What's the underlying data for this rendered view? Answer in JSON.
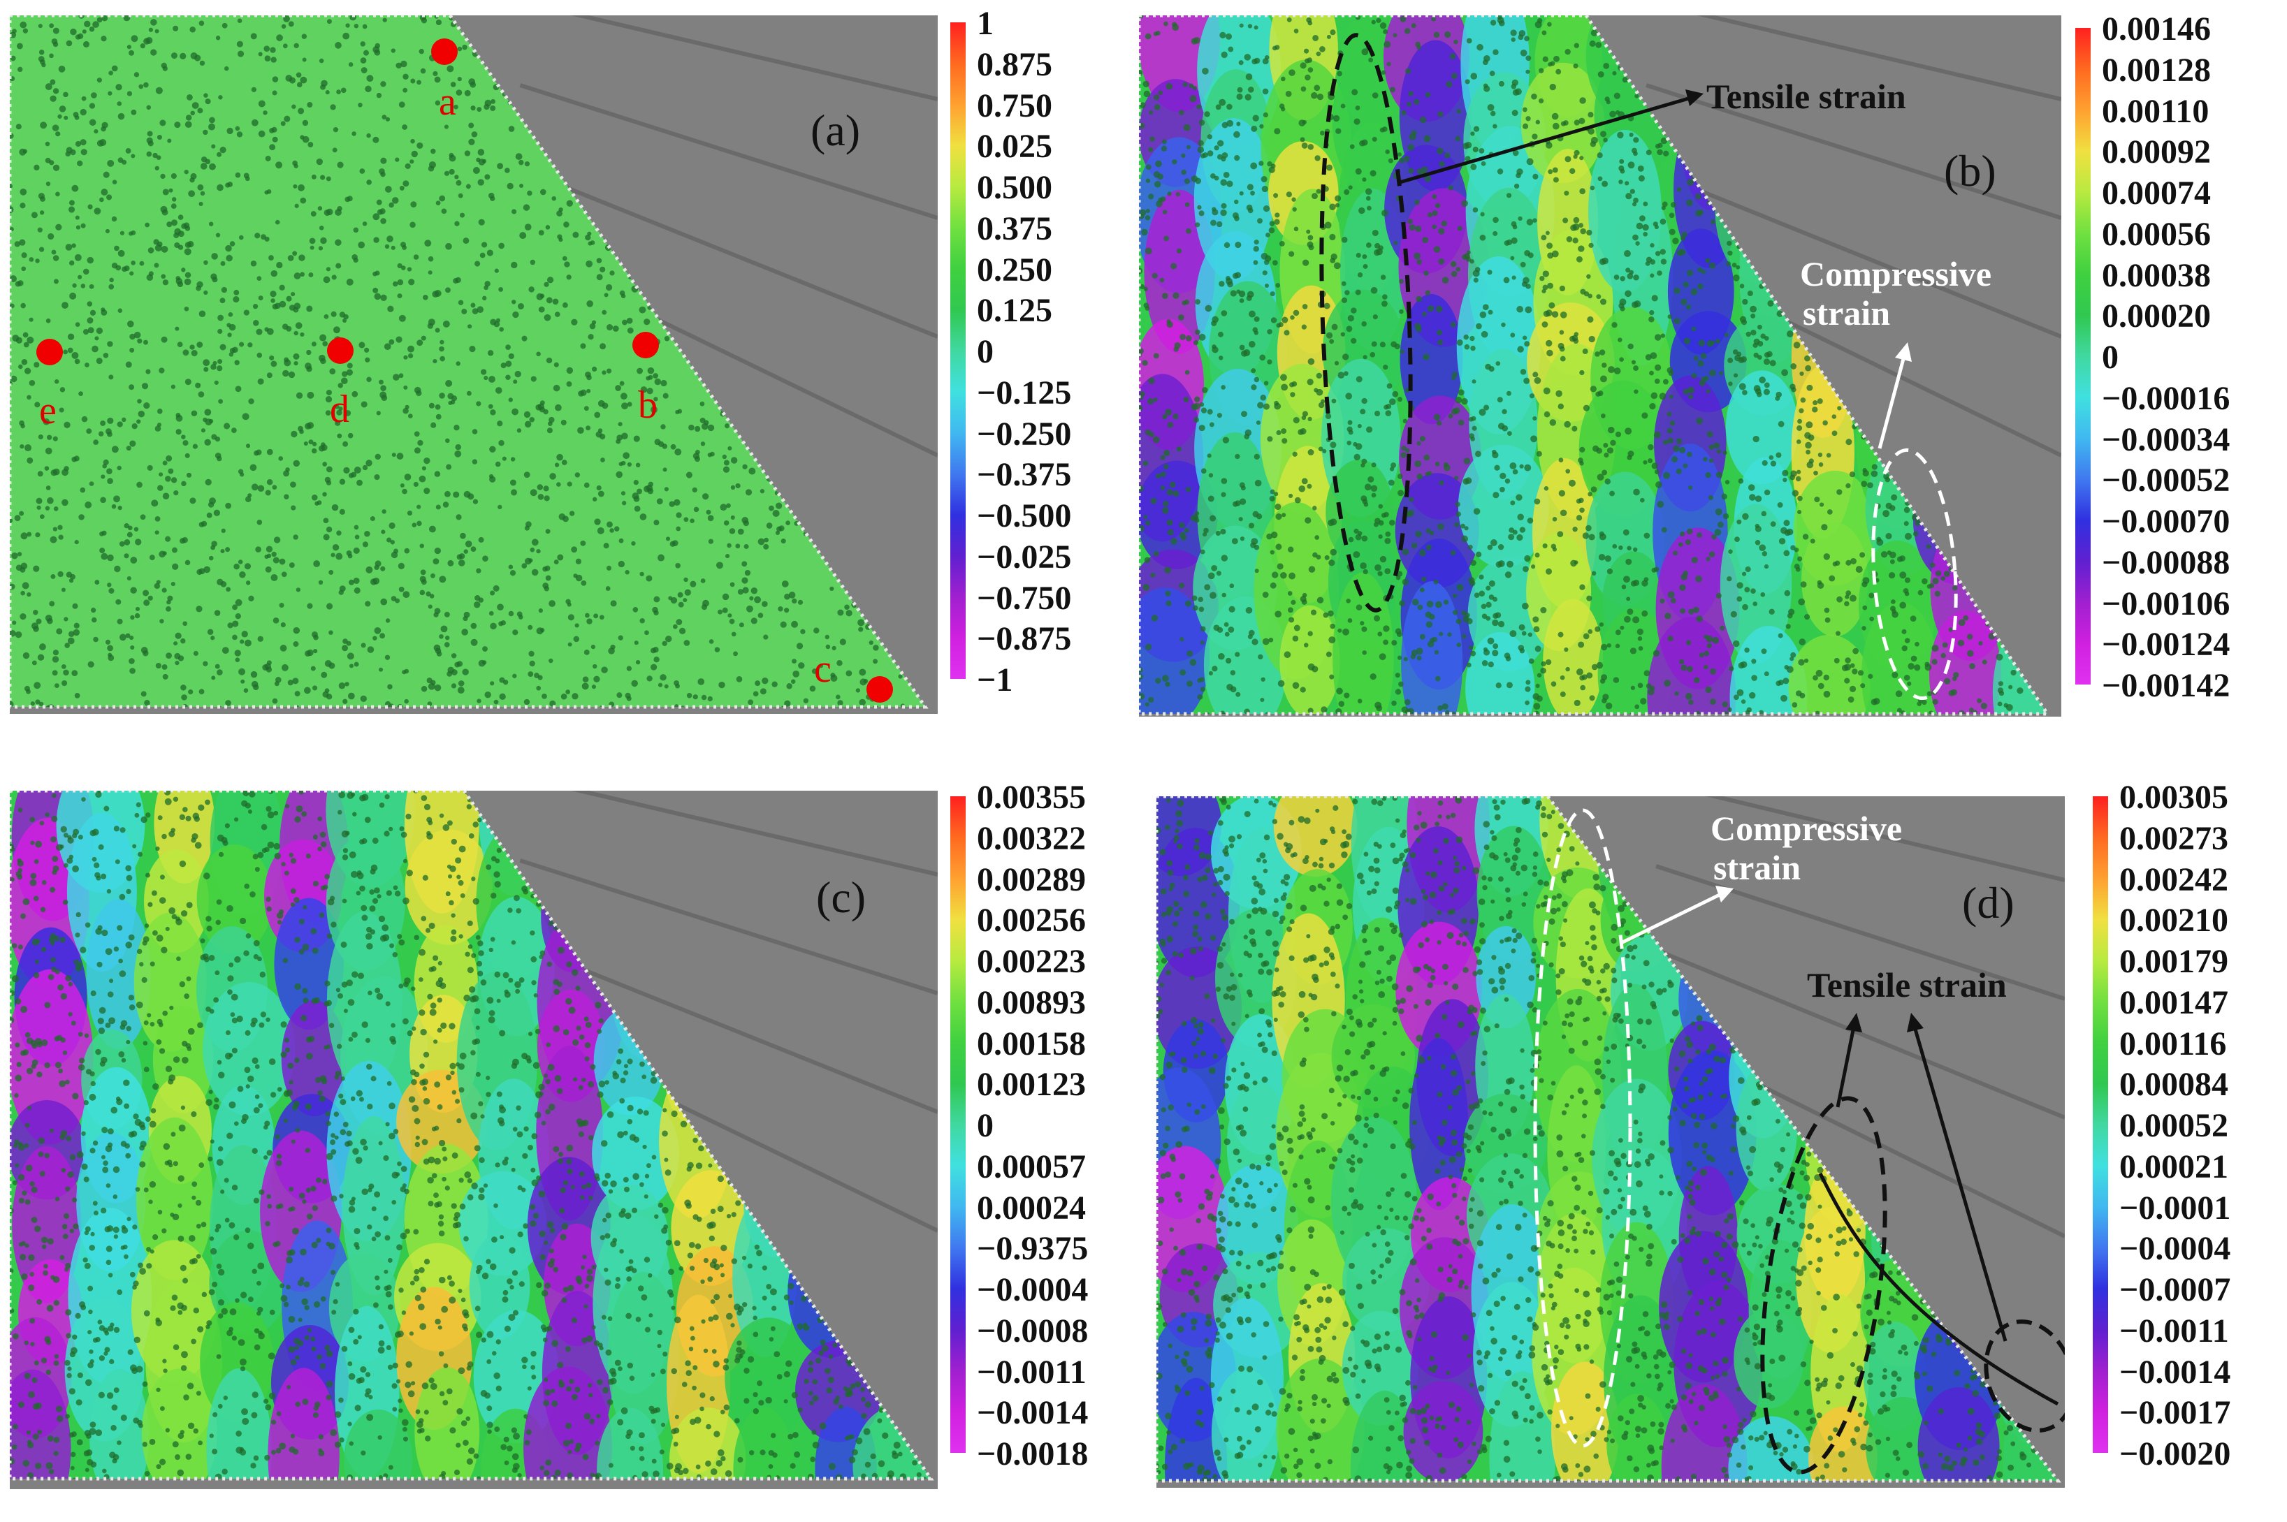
{
  "panels": [
    {
      "label": "(a)",
      "colorbar": [
        "1",
        "0.875",
        "0.750",
        "0.025",
        "0.500",
        "0.375",
        "0.250",
        "0.125",
        "0",
        "−0.125",
        "−0.250",
        "−0.375",
        "−0.500",
        "−0.025",
        "−0.750",
        "−0.875",
        "−1"
      ],
      "points": [
        "a",
        "b",
        "c",
        "d",
        "e"
      ]
    },
    {
      "label": "(b)",
      "colorbar": [
        "0.00146",
        "0.00128",
        "0.00110",
        "0.00092",
        "0.00074",
        "0.00056",
        "0.00038",
        "0.00020",
        "0",
        "−0.00016",
        "−0.00034",
        "−0.00052",
        "−0.00070",
        "−0.00088",
        "−0.00106",
        "−0.00124",
        "−0.00142"
      ],
      "annotations": {
        "tensile": "Tensile strain",
        "compressive_1": "Compressive",
        "compressive_2": "strain"
      }
    },
    {
      "label": "(c)",
      "colorbar": [
        "0.00355",
        "0.00322",
        "0.00289",
        "0.00256",
        "0.00223",
        "0.00893",
        "0.00158",
        "0.00123",
        "0",
        "0.00057",
        "0.00024",
        "−0.9375",
        "−0.0004",
        "−0.0008",
        "−0.0011",
        "−0.0014",
        "−0.0018"
      ]
    },
    {
      "label": "(d)",
      "colorbar": [
        "0.00305",
        "0.00273",
        "0.00242",
        "0.00210",
        "0.00179",
        "0.00147",
        "0.00116",
        "0.00084",
        "0.00052",
        "0.00021",
        "−0.0001",
        "−0.0004",
        "−0.0007",
        "−0.0011",
        "−0.0014",
        "−0.0017",
        "−0.0020"
      ],
      "annotations": {
        "tensile": "Tensile strain",
        "compressive_1": "Compressive",
        "compressive_2": "strain"
      }
    }
  ],
  "colors": {
    "colormap": [
      "#ff2020",
      "#ff6a20",
      "#ffa030",
      "#f0e040",
      "#b8ea40",
      "#70e040",
      "#40d040",
      "#30c850",
      "#40d8a0",
      "#40e0e0",
      "#40b8f0",
      "#4078f0",
      "#3030e0",
      "#6020d0",
      "#a020d0",
      "#d020e0",
      "#e030f0"
    ],
    "field_green": "#5fd25f",
    "point_red": "#f00000"
  }
}
